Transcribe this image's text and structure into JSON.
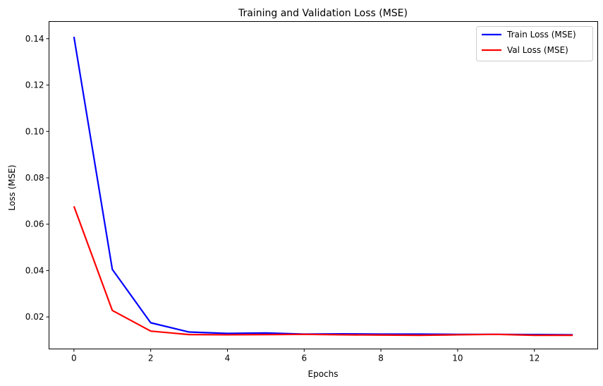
{
  "chart_data": {
    "type": "line",
    "title": "Training and Validation Loss (MSE)",
    "xlabel": "Epochs",
    "ylabel": "Loss (MSE)",
    "xlim": [
      -0.65,
      13.65
    ],
    "ylim": [
      0.0062,
      0.1474
    ],
    "xticks": [
      0,
      2,
      4,
      6,
      8,
      10,
      12
    ],
    "yticks": [
      0.02,
      0.04,
      0.06,
      0.08,
      0.1,
      0.12,
      0.14
    ],
    "ytick_labels": [
      "0.02",
      "0.04",
      "0.06",
      "0.08",
      "0.10",
      "0.12",
      "0.14"
    ],
    "grid": false,
    "legend_position": "top-right",
    "x": [
      0,
      1,
      2,
      3,
      4,
      5,
      6,
      7,
      8,
      9,
      10,
      11,
      12,
      13
    ],
    "series": [
      {
        "name": "Train Loss (MSE)",
        "color": "#0000ff",
        "values": [
          0.1408,
          0.0405,
          0.0175,
          0.0135,
          0.0129,
          0.0131,
          0.0126,
          0.0127,
          0.0126,
          0.0126,
          0.0125,
          0.0125,
          0.0124,
          0.0123
        ]
      },
      {
        "name": "Val Loss (MSE)",
        "color": "#ff0000",
        "values": [
          0.0677,
          0.0228,
          0.0139,
          0.0124,
          0.0123,
          0.0124,
          0.0125,
          0.0123,
          0.0122,
          0.0121,
          0.0123,
          0.0125,
          0.0121,
          0.0121
        ]
      }
    ]
  }
}
